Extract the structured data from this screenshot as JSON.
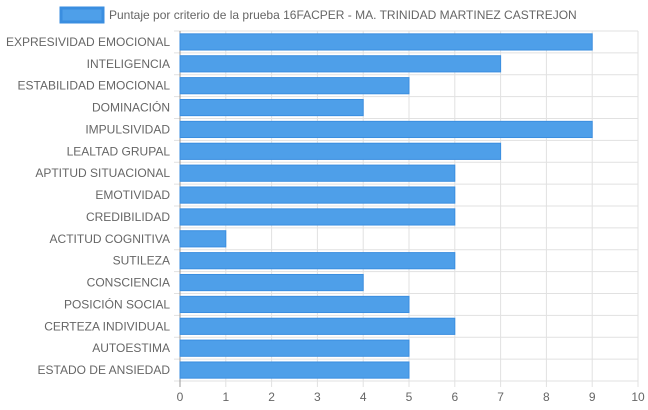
{
  "chart_data": {
    "type": "bar",
    "orientation": "horizontal",
    "categories": [
      "EXPRESIVIDAD EMOCIONAL",
      "INTELIGENCIA",
      "ESTABILIDAD EMOCIONAL",
      "DOMINACIÓN",
      "IMPULSIVIDAD",
      "LEALTAD GRUPAL",
      "APTITUD SITUACIONAL",
      "EMOTIVIDAD",
      "CREDIBILIDAD",
      "ACTITUD COGNITIVA",
      "SUTILEZA",
      "CONSCIENCIA",
      "POSICIÓN SOCIAL",
      "CERTEZA INDIVIDUAL",
      "AUTOESTIMA",
      "ESTADO DE ANSIEDAD"
    ],
    "series": [
      {
        "name": "Puntaje por criterio de la prueba 16FACPER - MA. TRINIDAD MARTINEZ CASTREJON",
        "values": [
          9,
          7,
          5,
          4,
          9,
          7,
          6,
          6,
          6,
          1,
          6,
          4,
          5,
          6,
          5,
          5
        ]
      }
    ],
    "xlim": [
      0,
      10
    ],
    "x_ticks": [
      "0",
      "1",
      "2",
      "3",
      "4",
      "5",
      "6",
      "7",
      "8",
      "9",
      "10"
    ],
    "grid": true,
    "legend_position": "top",
    "colors": {
      "bar_fill": "#4e9fe9",
      "bar_stroke": "#3a8ee0",
      "grid": "#e1e1e1",
      "axis": "#999999"
    }
  }
}
